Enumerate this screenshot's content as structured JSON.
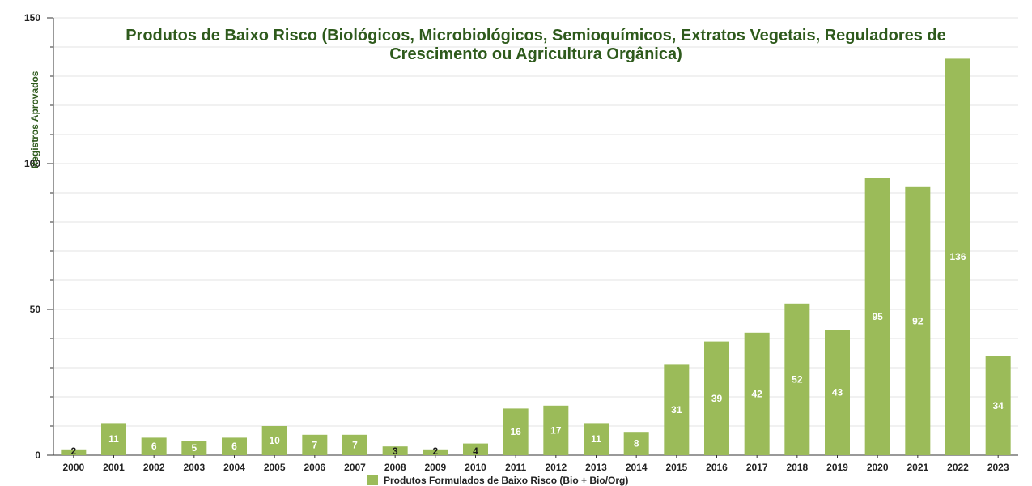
{
  "chart_data": {
    "type": "bar",
    "title": "Produtos de Baixo Risco (Biológicos, Microbiológicos, Semioquímicos, Extratos Vegetais, Reguladores de Crescimento ou Agricultura Orgânica)",
    "title_lines": [
      "Produtos de Baixo Risco (Biológicos, Microbiológicos, Semioquímicos, Extratos Vegetais, Reguladores de",
      "Crescimento ou Agricultura Orgânica)"
    ],
    "xlabel": "",
    "ylabel": "Registros Aprovados",
    "ylim": [
      0,
      150
    ],
    "yticks": [
      "0",
      "50",
      "100",
      "150"
    ],
    "categories": [
      "2000",
      "2001",
      "2002",
      "2003",
      "2004",
      "2005",
      "2006",
      "2007",
      "2008",
      "2009",
      "2010",
      "2011",
      "2012",
      "2013",
      "2014",
      "2015",
      "2016",
      "2017",
      "2018",
      "2019",
      "2020",
      "2021",
      "2022",
      "2023"
    ],
    "series": [
      {
        "name": "Produtos Formulados de Baixo Risco (Bio + Bio/Org)",
        "values": [
          2,
          11,
          6,
          5,
          6,
          10,
          7,
          7,
          3,
          2,
          4,
          16,
          17,
          11,
          8,
          31,
          39,
          42,
          52,
          43,
          95,
          92,
          136,
          34
        ],
        "labels": [
          "2",
          "11",
          "6",
          "5",
          "6",
          "10",
          "7",
          "7",
          "3",
          "2",
          "4",
          "16",
          "17",
          "11",
          "8",
          "31",
          "39",
          "42",
          "52",
          "43",
          "95",
          "92",
          "136",
          "34"
        ],
        "color": "#9bbb59"
      }
    ],
    "grid": true,
    "legend_position": "bottom-center"
  }
}
